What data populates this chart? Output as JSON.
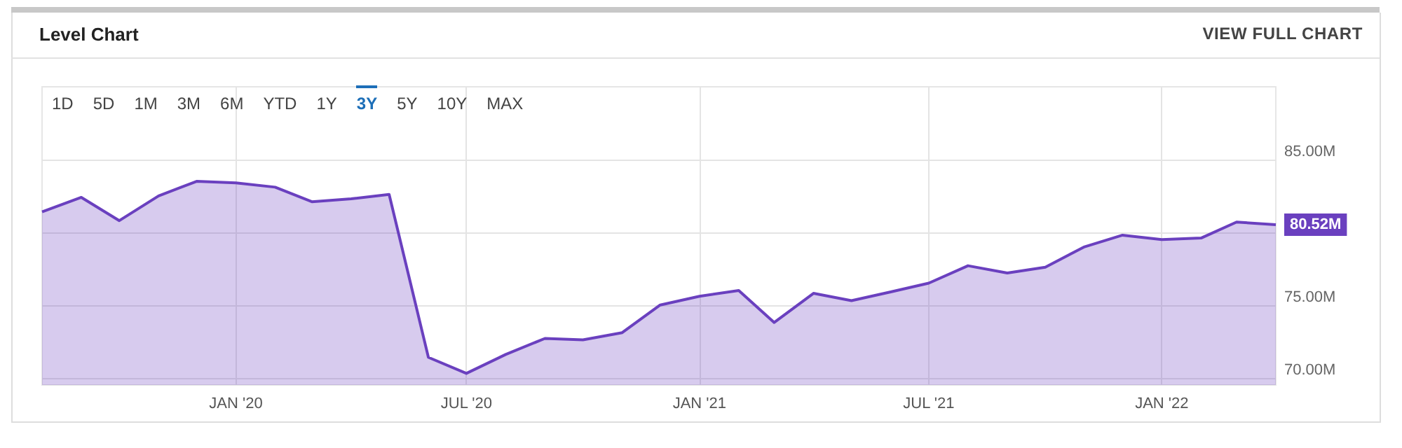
{
  "chart_data": {
    "type": "area",
    "title": "Level Chart",
    "annotations": [
      "VIEW FULL CHART",
      "1D",
      "5D",
      "1M",
      "3M",
      "6M",
      "YTD",
      "1Y",
      "3Y",
      "5Y",
      "10Y",
      "MAX"
    ],
    "x": [
      "2019-08",
      "2019-09",
      "2019-10",
      "2019-11",
      "2019-12",
      "2020-01",
      "2020-02",
      "2020-03",
      "2020-04",
      "2020-05",
      "2020-06",
      "2020-07",
      "2020-08",
      "2020-09",
      "2020-10",
      "2020-11",
      "2020-12",
      "2021-01",
      "2021-02",
      "2021-03",
      "2021-04",
      "2021-05",
      "2021-06",
      "2021-07",
      "2021-08",
      "2021-09",
      "2021-10",
      "2021-11",
      "2021-12",
      "2022-01",
      "2022-02",
      "2022-03",
      "2022-04"
    ],
    "series": [
      {
        "color": "#6a40bf",
        "values": [
          81.4,
          82.4,
          80.8,
          82.5,
          83.5,
          83.4,
          83.1,
          82.1,
          82.3,
          82.6,
          71.4,
          70.3,
          71.6,
          72.7,
          72.6,
          73.1,
          75.0,
          75.6,
          76.0,
          73.8,
          75.8,
          75.3,
          75.9,
          76.5,
          77.7,
          77.2,
          77.6,
          79.0,
          79.8,
          79.5,
          79.6,
          80.7,
          80.52
        ],
        "value_labels": [
          null,
          null,
          null,
          null,
          null,
          null,
          null,
          null,
          null,
          null,
          null,
          null,
          null,
          null,
          null,
          null,
          null,
          null,
          null,
          null,
          null,
          null,
          null,
          null,
          null,
          null,
          null,
          null,
          null,
          null,
          null,
          null,
          "80.52M"
        ]
      }
    ],
    "xlim": [
      "2019-08",
      "2022-04"
    ],
    "xticks": [
      {
        "value": "2020-01",
        "label": "JAN '20"
      },
      {
        "value": "2020-07",
        "label": "JUL '20"
      },
      {
        "value": "2021-01",
        "label": "JAN '21"
      },
      {
        "value": "2021-07",
        "label": "JUL '21"
      },
      {
        "value": "2022-01",
        "label": "JAN '22"
      }
    ],
    "ylim": [
      69.5,
      90
    ],
    "yticks": [
      {
        "value": 70,
        "label": "70.00M"
      },
      {
        "value": 75,
        "label": "75.00M"
      },
      {
        "value": 80,
        "label": null
      },
      {
        "value": 85,
        "label": "85.00M"
      }
    ],
    "grid": true,
    "marker": "none"
  }
}
